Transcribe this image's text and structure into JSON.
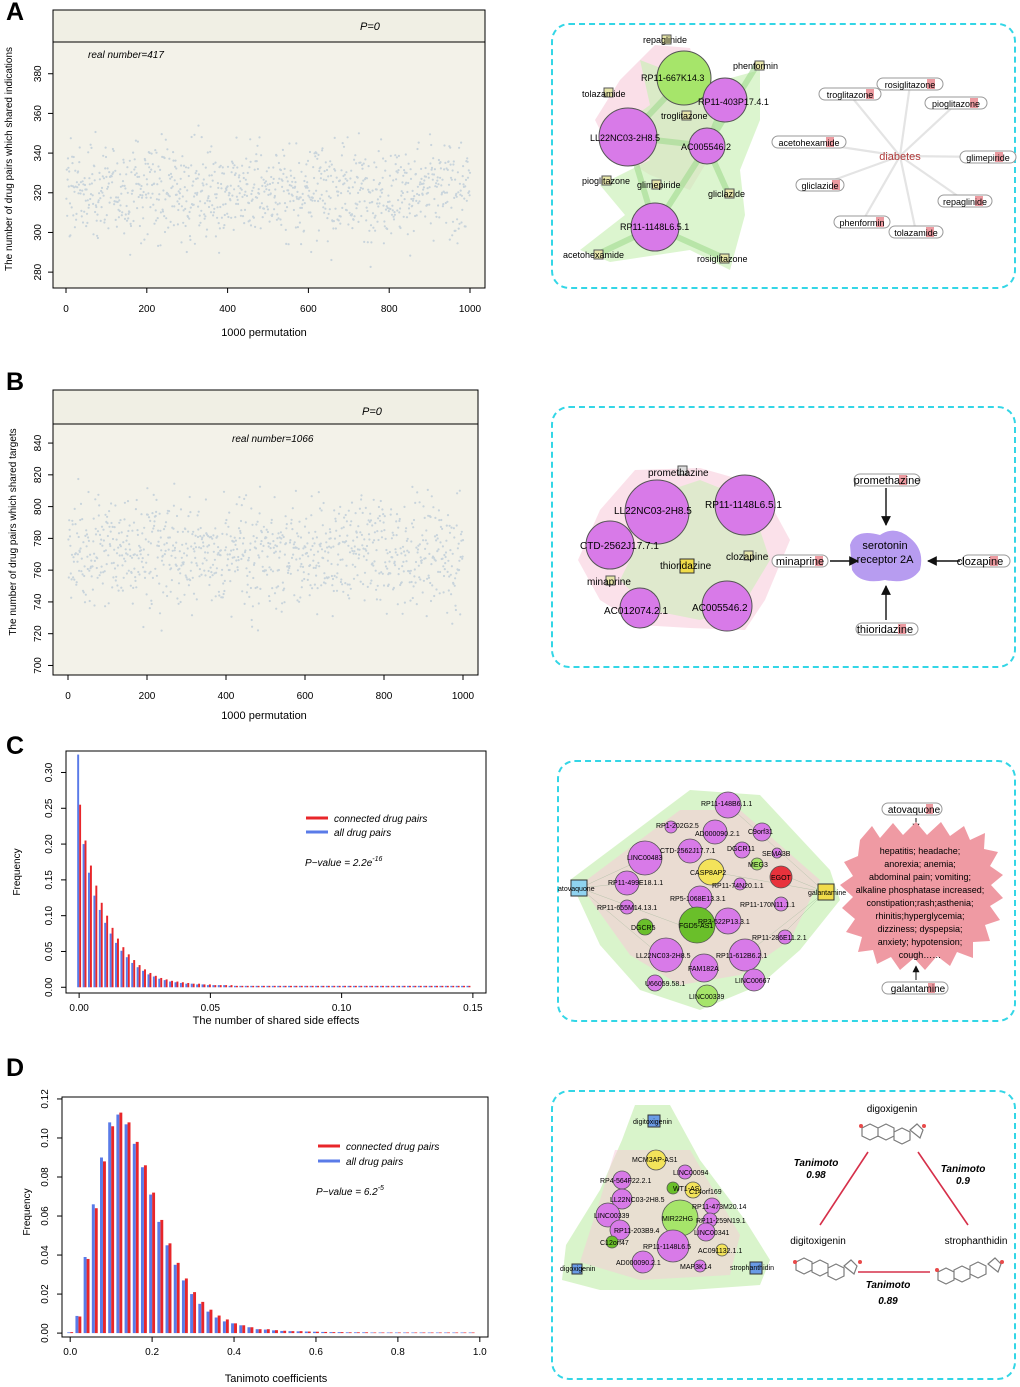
{
  "panels": {
    "A": {
      "letter": "A"
    },
    "B": {
      "letter": "B"
    },
    "C": {
      "letter": "C"
    },
    "D": {
      "letter": "D"
    }
  },
  "chart_data": [
    {
      "id": "A",
      "type": "scatter",
      "header": "P=0",
      "annotation": "real number=417",
      "xlabel": "1000 permutation",
      "ylabel": "The number of drug pairs which shared indications",
      "xlim": [
        0,
        1000
      ],
      "ylim": [
        272,
        396
      ],
      "xticks": [
        0,
        200,
        400,
        600,
        800,
        1000
      ],
      "yticks": [
        280,
        300,
        320,
        340,
        360,
        380
      ],
      "points": {
        "n": 1000,
        "center": 321,
        "spread": 12,
        "color": "#c8d4dc"
      }
    },
    {
      "id": "B",
      "type": "scatter",
      "header": "P=0",
      "annotation": "real number=1066",
      "xlabel": "1000 permutation",
      "ylabel": "The number of drug pairs which shared targets",
      "xlim": [
        0,
        1000
      ],
      "ylim": [
        694,
        852
      ],
      "xticks": [
        0,
        200,
        400,
        600,
        800,
        1000
      ],
      "yticks": [
        700,
        720,
        740,
        760,
        780,
        800,
        820,
        840
      ],
      "points": {
        "n": 1000,
        "center": 770,
        "spread": 17,
        "color": "#c8d4dc"
      }
    },
    {
      "id": "C",
      "type": "bar",
      "xlabel": "The number of shared side effects",
      "ylabel": "Frequency",
      "xlim": [
        -0.005,
        0.155
      ],
      "ylim": [
        -0.008,
        0.33
      ],
      "xticks": [
        0.0,
        0.05,
        0.1,
        0.15
      ],
      "xtick_labels": [
        "0.00",
        "0.05",
        "0.10",
        "0.15"
      ],
      "yticks": [
        0.0,
        0.05,
        0.1,
        0.15,
        0.2,
        0.25,
        0.3
      ],
      "ytick_labels": [
        "0.00",
        "0.05",
        "0.10",
        "0.15",
        "0.20",
        "0.25",
        "0.30"
      ],
      "legend": [
        {
          "name": "connected drug pairs",
          "color": "#e8262a"
        },
        {
          "name": "all drug pairs",
          "color": "#5a7be8"
        }
      ],
      "pvalue_label": "P−value = 2.2e",
      "pvalue_exp": "-16",
      "bin_width": 0.00206,
      "series": [
        {
          "name": "connected drug pairs",
          "color": "#e8262a",
          "values": [
            0.255,
            0.205,
            0.17,
            0.142,
            0.118,
            0.1,
            0.083,
            0.068,
            0.056,
            0.046,
            0.038,
            0.031,
            0.025,
            0.02,
            0.016,
            0.013,
            0.011,
            0.009,
            0.008,
            0.007,
            0.006,
            0.005,
            0.005,
            0.004,
            0.004,
            0.003,
            0.003,
            0.003,
            0.003,
            0.002,
            0.002,
            0.002,
            0.002,
            0.002,
            0.002,
            0.002,
            0.002,
            0.002,
            0.002,
            0.002,
            0.002,
            0.002,
            0.002,
            0.002,
            0.002,
            0.002,
            0.002,
            0.002,
            0.002,
            0.002,
            0.002,
            0.002,
            0.002,
            0.002,
            0.002,
            0.002,
            0.002,
            0.002,
            0.002,
            0.002,
            0.002,
            0.002,
            0.002,
            0.002,
            0.002,
            0.002,
            0.002,
            0.002,
            0.002,
            0.002,
            0.002,
            0.002,
            0.002
          ]
        },
        {
          "name": "all drug pairs",
          "color": "#5a7be8",
          "values": [
            0.325,
            0.2,
            0.16,
            0.128,
            0.108,
            0.09,
            0.075,
            0.062,
            0.051,
            0.042,
            0.034,
            0.028,
            0.023,
            0.018,
            0.015,
            0.012,
            0.01,
            0.008,
            0.007,
            0.006,
            0.005,
            0.005,
            0.004,
            0.004,
            0.003,
            0.003,
            0.003,
            0.003,
            0.002,
            0.002,
            0.002,
            0.002,
            0.002,
            0.002,
            0.002,
            0.002,
            0.002,
            0.002,
            0.002,
            0.002,
            0.002,
            0.002,
            0.002,
            0.002,
            0.002,
            0.002,
            0.002,
            0.002,
            0.002,
            0.002,
            0.002,
            0.002,
            0.002,
            0.002,
            0.002,
            0.002,
            0.002,
            0.002,
            0.002,
            0.002,
            0.002,
            0.002,
            0.002,
            0.002,
            0.002,
            0.002,
            0.002,
            0.002,
            0.002,
            0.002,
            0.002,
            0.002,
            0.002
          ]
        }
      ]
    },
    {
      "id": "D",
      "type": "bar",
      "xlabel": "Tanimoto coefficients",
      "ylabel": "Frequency",
      "xlim": [
        -0.02,
        1.02
      ],
      "ylim": [
        -0.002,
        0.121
      ],
      "xticks": [
        0.0,
        0.2,
        0.4,
        0.6,
        0.8,
        1.0
      ],
      "xtick_labels": [
        "0.0",
        "0.2",
        "0.4",
        "0.6",
        "0.8",
        "1.0"
      ],
      "yticks": [
        0.0,
        0.02,
        0.04,
        0.06,
        0.08,
        0.1,
        0.12
      ],
      "ytick_labels": [
        "0.00",
        "0.02",
        "0.04",
        "0.06",
        "0.08",
        "0.10",
        "0.12"
      ],
      "legend": [
        {
          "name": "connected drug pairs",
          "color": "#e8262a"
        },
        {
          "name": "all drug pairs",
          "color": "#5a7be8"
        }
      ],
      "pvalue_label": "P−value = 6.2",
      "pvalue_exp": "-5",
      "bin_width": 0.02,
      "series": [
        {
          "name": "connected drug pairs",
          "color": "#e8262a",
          "values": [
            0.0005,
            0.0085,
            0.038,
            0.064,
            0.088,
            0.106,
            0.113,
            0.108,
            0.098,
            0.086,
            0.072,
            0.058,
            0.046,
            0.036,
            0.028,
            0.021,
            0.016,
            0.012,
            0.009,
            0.007,
            0.005,
            0.004,
            0.003,
            0.002,
            0.002,
            0.0015,
            0.0012,
            0.001,
            0.001,
            0.0008,
            0.0007,
            0.0006,
            0.0005,
            0.0005,
            0.0004,
            0.0004,
            0.0004,
            0.0003,
            0.0003,
            0.0003,
            0.0003,
            0.0003,
            0.0003,
            0.0003,
            0.0003,
            0.0003,
            0.0003,
            0.0003,
            0.0003,
            0.0003
          ]
        },
        {
          "name": "all drug pairs",
          "color": "#5a7be8",
          "values": [
            0.0004,
            0.0088,
            0.039,
            0.066,
            0.09,
            0.108,
            0.112,
            0.107,
            0.097,
            0.085,
            0.071,
            0.057,
            0.045,
            0.035,
            0.027,
            0.02,
            0.015,
            0.011,
            0.008,
            0.006,
            0.005,
            0.004,
            0.003,
            0.002,
            0.0018,
            0.0014,
            0.0011,
            0.001,
            0.0009,
            0.0008,
            0.0007,
            0.0006,
            0.0005,
            0.0005,
            0.0004,
            0.0004,
            0.0004,
            0.0003,
            0.0003,
            0.0003,
            0.0003,
            0.0003,
            0.0003,
            0.0003,
            0.0003,
            0.0003,
            0.0003,
            0.0003,
            0.0003,
            0.0003
          ]
        }
      ]
    }
  ],
  "networks": {
    "A": {
      "left_nodes": [
        "repaglinide",
        "RP11-667K14.3",
        "phenformin",
        "tolazamide",
        "RP11-403P17.4.1",
        "troglitazone",
        "LL22NC03-2H8.5",
        "AC005546.2",
        "pioglitazone",
        "glimepiride",
        "gliclazide",
        "RP11-1148L6.5.1",
        "acetohexamide",
        "rosiglitazone"
      ],
      "center": "diabetes",
      "spokes": [
        "rosiglitazone",
        "troglitazone",
        "pioglitazone",
        "acetohexamide",
        "glimepiride",
        "gliclazide",
        "repaglinide",
        "phenformin",
        "tolazamide"
      ]
    },
    "B": {
      "left_nodes": [
        "promethazine",
        "LL22NC03-2H8.5",
        "RP11-1148L6.5.1",
        "CTD-2562J17.7.1",
        "thioridazine",
        "clozapine",
        "minaprine",
        "AC012074.2.1",
        "AC005546.2"
      ],
      "center_line1": "serotonin",
      "center_line2": "receptor 2A",
      "spokes": [
        "promethazine",
        "minaprine",
        "clozapine",
        "thioridazine"
      ]
    },
    "C": {
      "nodes": [
        "RP11-148B6.1.1",
        "RP1-202G2.5",
        "AD000090.2.1",
        "C9orf31",
        "CTD-2562J17.7.1",
        "DGCR11",
        "SEMA3B",
        "LINC00483",
        "MEG3",
        "CASP8AP2",
        "RP11-499E18.1.1",
        "EGOT",
        "RP11-74N20.1.1",
        "atovaquone",
        "RP5-1068E13.3.1",
        "galantamine",
        "RP11-655M14.13.1",
        "RP11-170N11.1.1",
        "DGCR5",
        "FGD5-AS1",
        "RP3-522P13.3.1",
        "RP11-286E11.2.1",
        "LL22NC03-2H8.5",
        "RP11-612B6.2.1",
        "FAM182A",
        "U66059.58.1",
        "LINC00667",
        "LINC00339"
      ],
      "top_drug": "atovaquone",
      "bottom_drug": "galantamine",
      "side_effects": [
        "hepatitis; headache;",
        "anorexia; anemia;",
        "abdominal pain; vomiting;",
        "alkaline phosphatase increased;",
        "constipation;rash;asthenia;",
        "rhinitis;hyperglycemia;",
        "dizziness; dyspepsia;",
        "anxiety; hypotension;",
        "cough……"
      ]
    },
    "D": {
      "nodes": [
        "digitoxigenin",
        "MCM3AP-AS1",
        "LINC00094",
        "RP4-564F22.2.1",
        "WT1-AS",
        "C14orf169",
        "LL22NC03-2H8.5",
        "RP11-473M20.14",
        "LINC00339",
        "MIR22HG",
        "RP11-259N19.1",
        "RP11-203B9.4",
        "LINC00341",
        "C12orf47",
        "RP11-1148L6.5",
        "AC091132.1.1",
        "digoxigenin",
        "AD000090.2.1",
        "MAP3K14",
        "strophanthidin"
      ],
      "top": "digoxigenin",
      "left": "digitoxigenin",
      "right": "strophanthidin",
      "tanimoto": "Tanimoto",
      "t_left": "0.98",
      "t_right": "0.9",
      "t_bottom": "0.89"
    }
  }
}
